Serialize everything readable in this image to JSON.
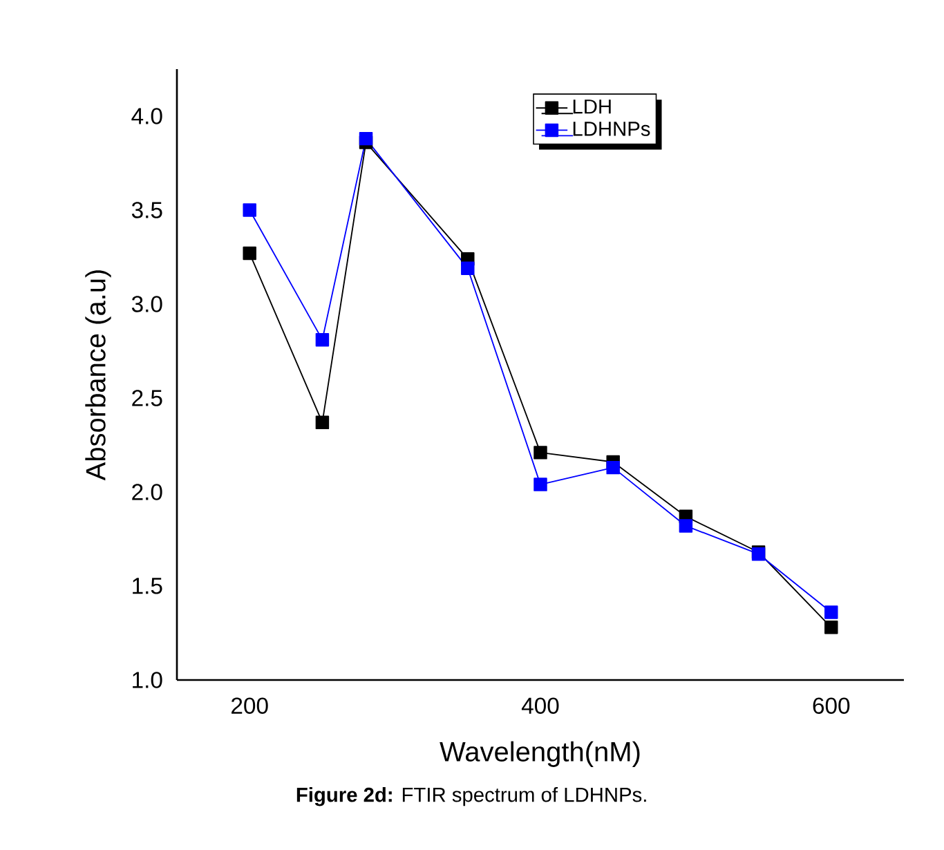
{
  "chart_data": {
    "type": "line",
    "xlabel": "Wavelength(nM)",
    "ylabel": "Absorbance (a.u)",
    "x": [
      200,
      250,
      280,
      350,
      400,
      450,
      500,
      550,
      600
    ],
    "series": [
      {
        "name": "LDH",
        "color": "#000000",
        "values": [
          3.27,
          2.37,
          3.86,
          3.24,
          2.21,
          2.16,
          1.87,
          1.68,
          1.28
        ]
      },
      {
        "name": "LDHNPs",
        "color": "#0000ff",
        "values": [
          3.5,
          2.81,
          3.88,
          3.19,
          2.04,
          2.13,
          1.82,
          1.67,
          1.36
        ]
      }
    ],
    "xlim": [
      150,
      650
    ],
    "ylim": [
      1.0,
      4.25
    ],
    "xticks": [
      200,
      400,
      600
    ],
    "yticks": [
      {
        "value": 1.0,
        "label": "1.0"
      },
      {
        "value": 1.5,
        "label": "1.5"
      },
      {
        "value": 2.0,
        "label": "2.0"
      },
      {
        "value": 2.5,
        "label": "2.5"
      },
      {
        "value": 3.0,
        "label": "3.0"
      },
      {
        "value": 3.5,
        "label": "3.5"
      },
      {
        "value": 4.0,
        "label": "4.0"
      }
    ],
    "marker": "square",
    "line_style": "solid",
    "legend": "top right",
    "grid": false,
    "annotations": [
      "**Figure 2d:** FTIR spectrum of LDHNPs."
    ]
  }
}
